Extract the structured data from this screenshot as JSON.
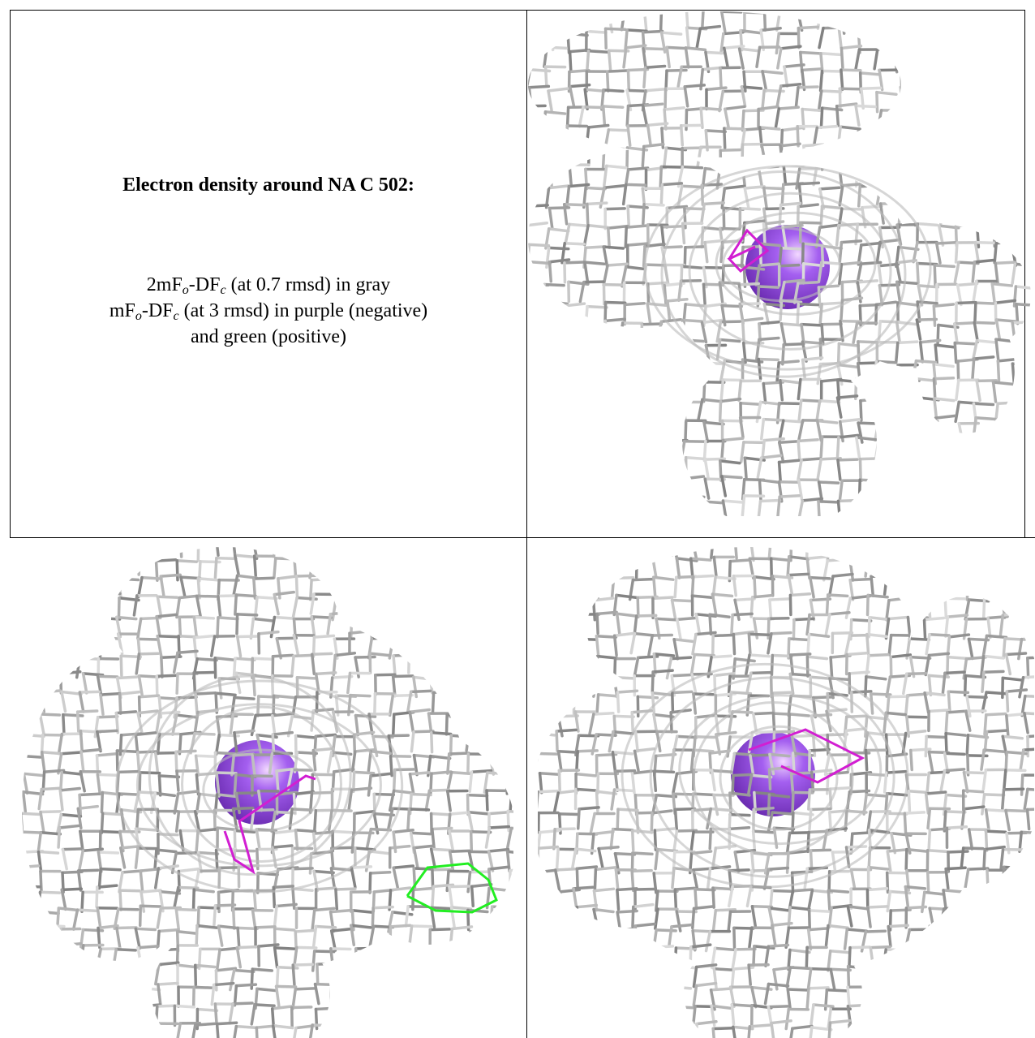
{
  "cell": {
    "title": "Electron density around NA C 502:",
    "caption": [
      [
        "2mF",
        "o",
        "-DF",
        "c",
        " (at 0.7 rmsd) in gray"
      ],
      [
        "mF",
        "o",
        "-DF",
        "c",
        " (at 3 rmsd) in purple (negative)"
      ],
      [
        "and green (positive)"
      ]
    ]
  }
}
